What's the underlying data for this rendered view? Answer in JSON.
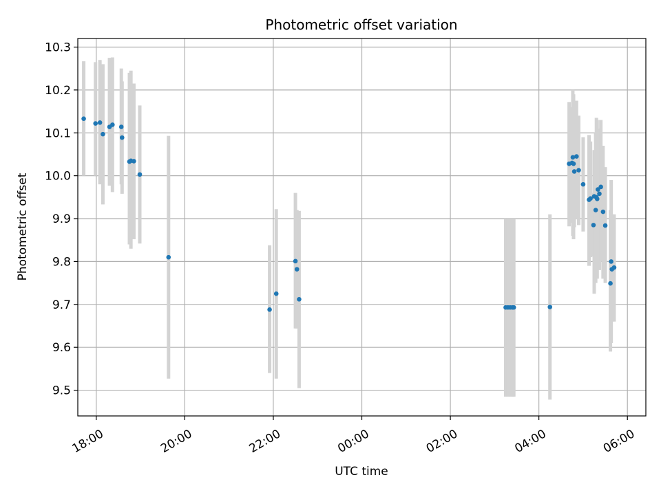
{
  "chart_data": {
    "type": "scatter",
    "title": "Photometric offset variation",
    "xlabel": "UTC time",
    "ylabel": "Photometric offset",
    "xlim": [
      "17:35",
      "06:25 (+1 day)"
    ],
    "ylim": [
      9.44,
      10.32
    ],
    "grid": true,
    "marker_color": "#1f77b4",
    "errorbar_color": "#d3d3d3",
    "x_ticks": [
      "18:00",
      "20:00",
      "22:00",
      "00:00",
      "02:00",
      "04:00",
      "06:00"
    ],
    "y_ticks": [
      "9.5",
      "9.6",
      "9.7",
      "9.8",
      "9.9",
      "10.0",
      "10.1",
      "10.2",
      "10.3"
    ],
    "points": [
      {
        "t": "17:43",
        "y": 10.133,
        "lo": 10.0,
        "hi": 10.267
      },
      {
        "t": "17:59",
        "y": 10.122,
        "lo": 10.0,
        "hi": 10.265
      },
      {
        "t": "18:05",
        "y": 10.124,
        "lo": 9.98,
        "hi": 10.27
      },
      {
        "t": "18:09",
        "y": 10.097,
        "lo": 9.933,
        "hi": 10.26
      },
      {
        "t": "18:18",
        "y": 10.114,
        "lo": 9.977,
        "hi": 10.275
      },
      {
        "t": "18:22",
        "y": 10.119,
        "lo": 9.962,
        "hi": 10.276
      },
      {
        "t": "18:34",
        "y": 10.114,
        "lo": 9.98,
        "hi": 10.25
      },
      {
        "t": "18:35",
        "y": 10.089,
        "lo": 9.958,
        "hi": 10.22
      },
      {
        "t": "18:45",
        "y": 10.033,
        "lo": 9.84,
        "hi": 10.24
      },
      {
        "t": "18:47",
        "y": 10.035,
        "lo": 9.83,
        "hi": 10.245
      },
      {
        "t": "18:51",
        "y": 10.034,
        "lo": 9.852,
        "hi": 10.215
      },
      {
        "t": "18:59",
        "y": 10.003,
        "lo": 9.842,
        "hi": 10.164
      },
      {
        "t": "19:38",
        "y": 9.81,
        "lo": 9.527,
        "hi": 10.093
      },
      {
        "t": "21:55",
        "y": 9.688,
        "lo": 9.54,
        "hi": 9.838
      },
      {
        "t": "22:04",
        "y": 9.725,
        "lo": 9.527,
        "hi": 9.922
      },
      {
        "t": "22:30",
        "y": 9.801,
        "lo": 9.644,
        "hi": 9.96
      },
      {
        "t": "22:32",
        "y": 9.782,
        "lo": 9.644,
        "hi": 9.92
      },
      {
        "t": "22:35",
        "y": 9.712,
        "lo": 9.505,
        "hi": 9.918
      },
      {
        "t": "03:15",
        "y": 9.693,
        "lo": 9.485,
        "hi": 9.9
      },
      {
        "t": "03:18",
        "y": 9.693,
        "lo": 9.485,
        "hi": 9.9
      },
      {
        "t": "03:21",
        "y": 9.693,
        "lo": 9.485,
        "hi": 9.9
      },
      {
        "t": "03:24",
        "y": 9.693,
        "lo": 9.485,
        "hi": 9.9
      },
      {
        "t": "03:26",
        "y": 9.693,
        "lo": 9.485,
        "hi": 9.9
      },
      {
        "t": "04:15",
        "y": 9.694,
        "lo": 9.478,
        "hi": 9.91
      },
      {
        "t": "04:41",
        "y": 10.028,
        "lo": 9.882,
        "hi": 10.172
      },
      {
        "t": "04:45",
        "y": 10.03,
        "lo": 9.89,
        "hi": 10.16
      },
      {
        "t": "04:46",
        "y": 10.043,
        "lo": 9.86,
        "hi": 10.2
      },
      {
        "t": "04:47",
        "y": 10.028,
        "lo": 9.852,
        "hi": 10.19
      },
      {
        "t": "04:48",
        "y": 10.01,
        "lo": 9.88,
        "hi": 10.14
      },
      {
        "t": "04:51",
        "y": 10.045,
        "lo": 9.9,
        "hi": 10.175
      },
      {
        "t": "04:54",
        "y": 10.013,
        "lo": 9.885,
        "hi": 10.14
      },
      {
        "t": "05:00",
        "y": 9.98,
        "lo": 9.87,
        "hi": 10.09
      },
      {
        "t": "05:08",
        "y": 9.944,
        "lo": 9.79,
        "hi": 10.095
      },
      {
        "t": "05:10",
        "y": 9.947,
        "lo": 9.81,
        "hi": 10.08
      },
      {
        "t": "05:14",
        "y": 9.885,
        "lo": 9.812,
        "hi": 9.96
      },
      {
        "t": "05:15",
        "y": 9.952,
        "lo": 9.725,
        "hi": 10.06
      },
      {
        "t": "05:17",
        "y": 9.92,
        "lo": 9.75,
        "hi": 10.1
      },
      {
        "t": "05:18",
        "y": 9.95,
        "lo": 9.8,
        "hi": 10.135
      },
      {
        "t": "05:19",
        "y": 9.946,
        "lo": 9.76,
        "hi": 10.13
      },
      {
        "t": "05:20",
        "y": 9.968,
        "lo": 9.81,
        "hi": 10.11
      },
      {
        "t": "05:22",
        "y": 9.958,
        "lo": 9.78,
        "hi": 10.1
      },
      {
        "t": "05:24",
        "y": 9.974,
        "lo": 9.8,
        "hi": 10.13
      },
      {
        "t": "05:27",
        "y": 9.916,
        "lo": 9.76,
        "hi": 10.07
      },
      {
        "t": "05:30",
        "y": 9.884,
        "lo": 9.75,
        "hi": 10.02
      },
      {
        "t": "05:37",
        "y": 9.749,
        "lo": 9.59,
        "hi": 9.92
      },
      {
        "t": "05:38",
        "y": 9.8,
        "lo": 9.61,
        "hi": 9.99
      },
      {
        "t": "05:39",
        "y": 9.782,
        "lo": 9.66,
        "hi": 9.91
      },
      {
        "t": "05:42",
        "y": 9.786,
        "lo": 9.66,
        "hi": 9.91
      }
    ]
  }
}
